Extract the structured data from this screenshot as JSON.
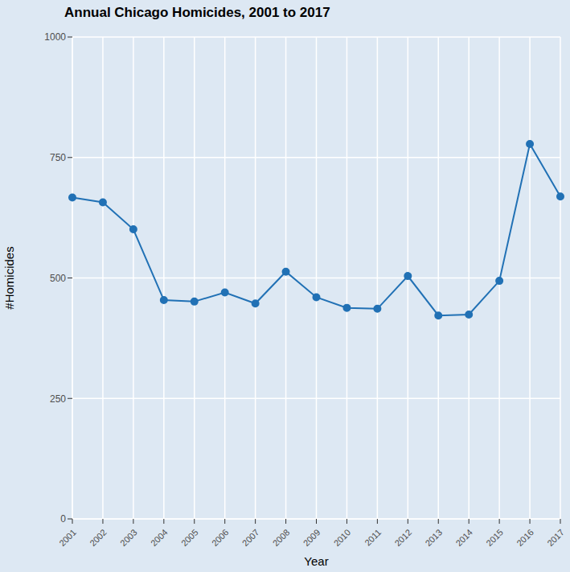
{
  "chart_data": {
    "type": "line",
    "title": "Annual Chicago Homicides, 2001 to 2017",
    "x_label": "Year",
    "y_label": "#Homicides",
    "categories": [
      "2001",
      "2002",
      "2003",
      "2004",
      "2005",
      "2006",
      "2007",
      "2008",
      "2009",
      "2010",
      "2011",
      "2012",
      "2013",
      "2014",
      "2015",
      "2016",
      "2017"
    ],
    "values": [
      667,
      657,
      601,
      454,
      451,
      470,
      447,
      513,
      460,
      438,
      436,
      504,
      422,
      424,
      494,
      778,
      669
    ],
    "color": "#2171b5",
    "marker": "circle",
    "line_style": "solid",
    "ylim": [
      0,
      1000
    ],
    "yticks": [
      0,
      250,
      500,
      750,
      1000
    ],
    "grid": true
  }
}
